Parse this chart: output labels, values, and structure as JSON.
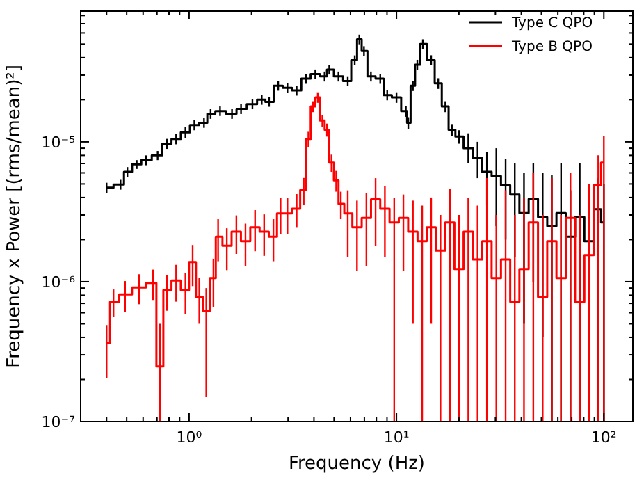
{
  "chart_data": {
    "type": "step",
    "xlabel": "Frequency (Hz)",
    "ylabel": "Frequency x Power [(rms/mean)²]",
    "log": "xy",
    "legend": "top right",
    "xlim": [
      0.3,
      138
    ],
    "ylim": [
      1e-07,
      8.6e-05
    ],
    "xticks": [
      {
        "value": 0.4,
        "label": null
      },
      {
        "value": 0.5,
        "label": null
      },
      {
        "value": 0.6,
        "label": null
      },
      {
        "value": 0.7,
        "label": null
      },
      {
        "value": 0.8,
        "label": null
      },
      {
        "value": 0.9,
        "label": null
      },
      {
        "value": 1,
        "label": "10⁰"
      },
      {
        "value": 2,
        "label": null
      },
      {
        "value": 3,
        "label": null
      },
      {
        "value": 4,
        "label": null
      },
      {
        "value": 5,
        "label": null
      },
      {
        "value": 6,
        "label": null
      },
      {
        "value": 7,
        "label": null
      },
      {
        "value": 8,
        "label": null
      },
      {
        "value": 9,
        "label": null
      },
      {
        "value": 10,
        "label": "10¹"
      },
      {
        "value": 20,
        "label": null
      },
      {
        "value": 30,
        "label": null
      },
      {
        "value": 40,
        "label": null
      },
      {
        "value": 50,
        "label": null
      },
      {
        "value": 60,
        "label": null
      },
      {
        "value": 70,
        "label": null
      },
      {
        "value": 80,
        "label": null
      },
      {
        "value": 90,
        "label": null
      },
      {
        "value": 100,
        "label": "10²"
      }
    ],
    "yticks": [
      {
        "value": 1e-07,
        "label": "10⁻⁷"
      },
      {
        "value": 2e-07,
        "label": null
      },
      {
        "value": 3e-07,
        "label": null
      },
      {
        "value": 4e-07,
        "label": null
      },
      {
        "value": 5e-07,
        "label": null
      },
      {
        "value": 6e-07,
        "label": null
      },
      {
        "value": 7e-07,
        "label": null
      },
      {
        "value": 8e-07,
        "label": null
      },
      {
        "value": 9e-07,
        "label": null
      },
      {
        "value": 1e-06,
        "label": "10⁻⁶"
      },
      {
        "value": 2e-06,
        "label": null
      },
      {
        "value": 3e-06,
        "label": null
      },
      {
        "value": 4e-06,
        "label": null
      },
      {
        "value": 5e-06,
        "label": null
      },
      {
        "value": 6e-06,
        "label": null
      },
      {
        "value": 7e-06,
        "label": null
      },
      {
        "value": 8e-06,
        "label": null
      },
      {
        "value": 9e-06,
        "label": null
      },
      {
        "value": 1e-05,
        "label": "10⁻⁵"
      },
      {
        "value": 2e-05,
        "label": null
      },
      {
        "value": 3e-05,
        "label": null
      },
      {
        "value": 4e-05,
        "label": null
      },
      {
        "value": 5e-05,
        "label": null
      },
      {
        "value": 6e-05,
        "label": null
      },
      {
        "value": 7e-05,
        "label": null
      },
      {
        "value": 8e-05,
        "label": null
      }
    ],
    "series": [
      {
        "name": "Type C QPO",
        "color": "#000000",
        "x": [
          0.4,
          0.467,
          0.504,
          0.559,
          0.619,
          0.705,
          0.781,
          0.866,
          0.96,
          1.06,
          1.18,
          1.27,
          1.41,
          1.61,
          1.78,
          2.02,
          2.24,
          2.43,
          2.69,
          2.98,
          3.3,
          3.66,
          4.06,
          4.5,
          4.74,
          5.25,
          5.82,
          6.29,
          6.62,
          6.97,
          7.53,
          8.35,
          9.02,
          10.0,
          11.1,
          11.4,
          12.0,
          12.6,
          13.4,
          14.7,
          15.9,
          17.2,
          18.5,
          20.0,
          22.2,
          24.6,
          27.3,
          30.3,
          33.6,
          37.2,
          41.2,
          45.7,
          50.7,
          56.1,
          62.2,
          69.0,
          76.5,
          84.8,
          94.0,
          100
        ],
        "values": [
          4.7e-06,
          4.95e-06,
          6.1e-06,
          6.9e-06,
          7.4e-06,
          8e-06,
          9.7e-06,
          1.05e-05,
          1.17e-05,
          1.32e-05,
          1.37e-05,
          1.59e-05,
          1.66e-05,
          1.59e-05,
          1.72e-05,
          1.86e-05,
          2e-05,
          1.93e-05,
          2.52e-05,
          2.43e-05,
          2.33e-05,
          2.83e-05,
          3.05e-05,
          2.94e-05,
          3.29e-05,
          2.94e-05,
          2.72e-05,
          3.84e-05,
          5.41e-05,
          4.47e-05,
          2.94e-05,
          2.83e-05,
          2.16e-05,
          2.08e-05,
          1.66e-05,
          1.37e-05,
          2.52e-05,
          3.56e-05,
          5.01e-05,
          3.84e-05,
          2.62e-05,
          1.79e-05,
          1.22e-05,
          1.09e-05,
          9e-06,
          7.7e-06,
          6.1e-06,
          5.7e-06,
          4.9e-06,
          4.2e-06,
          3.1e-06,
          3.9e-06,
          2.9e-06,
          2.5e-06,
          3.1e-06,
          2.1e-06,
          2.9e-06,
          1.95e-06,
          3.3e-06,
          2.65e-06
        ],
        "errors": [
          4e-07,
          4e-07,
          5e-07,
          5e-07,
          6e-07,
          6e-07,
          8e-07,
          9e-07,
          1e-06,
          1.1e-06,
          1.1e-06,
          1.3e-06,
          1.3e-06,
          1.3e-06,
          1.4e-06,
          1.5e-06,
          1.6e-06,
          1.5e-06,
          2e-06,
          2e-06,
          1.9e-06,
          2.3e-06,
          2.4e-06,
          2.4e-06,
          2.6e-06,
          2.4e-06,
          2.2e-06,
          3.1e-06,
          4.3e-06,
          3.6e-06,
          2.4e-06,
          2.3e-06,
          1.8e-06,
          1.8e-06,
          1.5e-06,
          1.3e-06,
          2.1e-06,
          3e-06,
          4e-06,
          3.2e-06,
          2.3e-06,
          1.6e-06,
          1.2e-06,
          1.2e-06,
          [
            7e-06,
            1.15e-05
          ],
          [
            5.5e-06,
            1e-05
          ],
          [
            3.5e-06,
            8.5e-06
          ],
          [
            2.5e-06,
            9e-06
          ],
          [
            2e-06,
            7.5e-06
          ],
          [
            1.5e-06,
            7e-06
          ],
          [
            5e-07,
            6e-06
          ],
          [
            1e-06,
            7e-06
          ],
          [
            4e-07,
            6e-06
          ],
          [
            1e-07,
            5.8e-06
          ],
          [
            1e-07,
            7e-06
          ],
          [
            1e-07,
            4.5e-06
          ],
          [
            1e-07,
            7e-06
          ],
          [
            1e-07,
            4e-06
          ],
          [
            1e-07,
            5.5e-06
          ],
          [
            1e-07,
            5e-06
          ]
        ]
      },
      {
        "name": "Type B QPO",
        "color": "#ff0000",
        "x": [
          0.4,
          0.432,
          0.491,
          0.573,
          0.669,
          0.723,
          0.781,
          0.866,
          0.96,
          1.04,
          1.12,
          1.21,
          1.31,
          1.38,
          1.52,
          1.69,
          1.87,
          2.08,
          2.3,
          2.55,
          2.76,
          2.98,
          3.3,
          3.57,
          3.76,
          3.96,
          4.17,
          4.39,
          4.62,
          4.86,
          5.12,
          5.39,
          5.82,
          6.45,
          7.16,
          7.93,
          8.79,
          9.75,
          10.8,
          12.0,
          13.3,
          14.7,
          16.3,
          18.1,
          20.0,
          22.2,
          24.6,
          27.3,
          30.3,
          33.6,
          37.2,
          41.2,
          45.7,
          50.7,
          56.1,
          62.2,
          69.0,
          76.5,
          84.8,
          94.0,
          100
        ],
        "values": [
          3.64e-07,
          7.2e-07,
          8.1e-07,
          9.1e-07,
          9.8e-07,
          2.48e-07,
          8.7e-07,
          1.02e-06,
          8.7e-07,
          1.38e-06,
          7.8e-07,
          6.2e-07,
          1.06e-06,
          2.1e-06,
          1.81e-06,
          2.28e-06,
          1.95e-06,
          2.45e-06,
          2.28e-06,
          2.1e-06,
          3.08e-06,
          3.08e-06,
          3.33e-06,
          4.52e-06,
          1.05e-05,
          1.79e-05,
          2.08e-05,
          1.42e-05,
          1.22e-05,
          7.1e-06,
          5.3e-06,
          3.6e-06,
          3.08e-06,
          2.45e-06,
          2.86e-06,
          3.88e-06,
          3.33e-06,
          2.65e-06,
          2.86e-06,
          2.28e-06,
          1.95e-06,
          2.45e-06,
          1.67e-06,
          2.65e-06,
          1.23e-06,
          2.28e-06,
          1.44e-06,
          1.95e-06,
          1.06e-06,
          1.44e-06,
          7.2e-07,
          1.23e-06,
          2.65e-06,
          7.8e-07,
          1.95e-06,
          1.06e-06,
          2.86e-06,
          7.2e-07,
          1.55e-06,
          4.9e-06,
          7.1e-06
        ],
        "errors": [
          [
            2.05e-07,
            4.9e-07
          ],
          1.6e-07,
          2e-07,
          2.2e-07,
          2.4e-07,
          [
            1e-07,
            5e-07
          ],
          2.5e-07,
          3e-07,
          2.8e-07,
          4.5e-07,
          2.8e-07,
          [
            1.5e-07,
            9e-07
          ],
          4e-07,
          7e-07,
          6e-07,
          7e-07,
          6.5e-07,
          8e-07,
          7.5e-07,
          7e-07,
          9e-07,
          9e-07,
          9e-07,
          1e-06,
          1.3e-06,
          1.6e-06,
          1.8e-06,
          1.4e-06,
          1.3e-06,
          1e-06,
          9e-07,
          8e-07,
          [
            1.5e-06,
            4.5e-06
          ],
          [
            1.2e-06,
            3.8e-06
          ],
          [
            1.3e-06,
            4.3e-06
          ],
          [
            1.8e-06,
            5.5e-06
          ],
          [
            1.5e-06,
            4.8e-06
          ],
          [
            1e-07,
            4e-06
          ],
          [
            1.2e-06,
            4.2e-06
          ],
          [
            5e-07,
            3.8e-06
          ],
          [
            1e-07,
            3.5e-06
          ],
          [
            5e-07,
            4e-06
          ],
          [
            1e-07,
            3e-06
          ],
          [
            1e-07,
            4.6e-06
          ],
          [
            1e-07,
            3e-06
          ],
          [
            1e-07,
            4e-06
          ],
          [
            1e-07,
            3.5e-06
          ],
          [
            1e-07,
            5.5e-06
          ],
          [
            1e-07,
            3e-06
          ],
          [
            1e-07,
            4.5e-06
          ],
          [
            1e-07,
            3e-06
          ],
          [
            1e-07,
            4e-06
          ],
          [
            1e-07,
            6e-06
          ],
          [
            1e-07,
            3e-06
          ],
          [
            1e-07,
            5.5e-06
          ],
          [
            1e-07,
            3e-06
          ],
          [
            1e-07,
            6e-06
          ],
          [
            1e-07,
            3e-06
          ],
          [
            1e-07,
            5e-06
          ],
          [
            1e-07,
            8e-06
          ],
          [
            1e-07,
            1.1e-05
          ]
        ]
      }
    ]
  }
}
